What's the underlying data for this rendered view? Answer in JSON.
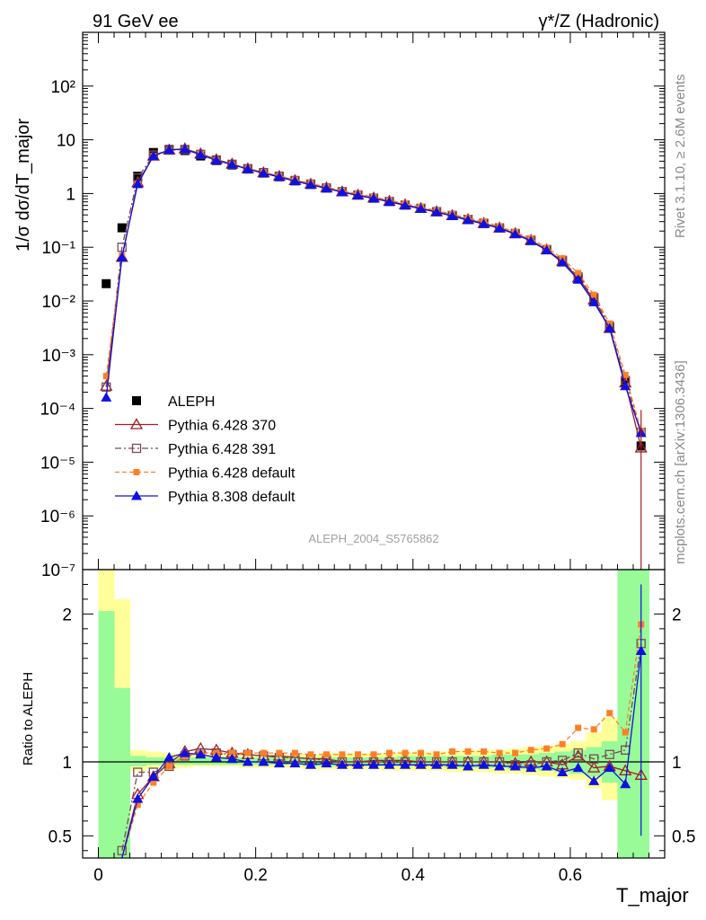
{
  "header": {
    "left": "91 GeV ee",
    "right": "γ*/Z (Hadronic)"
  },
  "side_labels": {
    "rivet": "Rivet 3.1.10, ≥ 2.6M events",
    "mcplots": "mcplots.cern.ch [arXiv:1306.3436]"
  },
  "analysis_id": "ALEPH_2004_S5765862",
  "chart_data": [
    {
      "type": "scatter",
      "panel": "main",
      "ylabel": "1/σ dσ/dT_major",
      "ylog": true,
      "ylim": [
        1e-07,
        1000
      ],
      "xlim": [
        -0.02,
        0.72
      ],
      "yticks": [
        "10⁻⁷",
        "10⁻⁶",
        "10⁻⁵",
        "10⁻⁴",
        "10⁻³",
        "10⁻²",
        "10⁻¹",
        "1",
        "10",
        "10²"
      ],
      "legend_position": "lower-left",
      "x": [
        0.01,
        0.03,
        0.05,
        0.07,
        0.09,
        0.11,
        0.13,
        0.15,
        0.17,
        0.19,
        0.21,
        0.23,
        0.25,
        0.27,
        0.29,
        0.31,
        0.33,
        0.35,
        0.37,
        0.39,
        0.41,
        0.43,
        0.45,
        0.47,
        0.49,
        0.51,
        0.53,
        0.55,
        0.57,
        0.59,
        0.61,
        0.63,
        0.65,
        0.67,
        0.69
      ],
      "series": [
        {
          "name": "ALEPH",
          "color": "#000000",
          "marker": "filled-square",
          "values": [
            0.021,
            0.23,
            2.1,
            5.8,
            6.6,
            6.3,
            5.0,
            4.1,
            3.4,
            2.85,
            2.4,
            2.05,
            1.72,
            1.48,
            1.26,
            1.08,
            0.94,
            0.82,
            0.71,
            0.61,
            0.53,
            0.46,
            0.39,
            0.33,
            0.28,
            0.23,
            0.18,
            0.135,
            0.09,
            0.056,
            0.026,
            0.011,
            0.0032,
            0.00031,
            2e-05
          ]
        },
        {
          "name": "Pythia 6.428 370",
          "color": "#a01e24",
          "marker": "open-triangle",
          "values": [
            0.00026,
            0.065,
            1.6,
            5.0,
            6.5,
            6.8,
            5.5,
            4.3,
            3.55,
            2.9,
            2.45,
            2.1,
            1.75,
            1.5,
            1.28,
            1.08,
            0.94,
            0.83,
            0.72,
            0.62,
            0.53,
            0.46,
            0.39,
            0.33,
            0.28,
            0.23,
            0.18,
            0.135,
            0.09,
            0.055,
            0.027,
            0.0105,
            0.0031,
            0.0003,
            1.85e-05
          ]
        },
        {
          "name": "Pythia 6.428 391",
          "color": "#7a4a56",
          "marker": "open-square",
          "values": [
            0.00025,
            0.1,
            1.95,
            5.2,
            6.4,
            6.6,
            5.35,
            4.2,
            3.5,
            2.9,
            2.45,
            2.1,
            1.75,
            1.5,
            1.27,
            1.08,
            0.94,
            0.82,
            0.71,
            0.61,
            0.53,
            0.46,
            0.39,
            0.33,
            0.28,
            0.23,
            0.18,
            0.135,
            0.09,
            0.057,
            0.028,
            0.0115,
            0.0034,
            0.00033,
            3.6e-05
          ]
        },
        {
          "name": "Pythia 6.428 default",
          "color": "#ff7f27",
          "marker": "filled-square-small",
          "values": [
            0.0004,
            0.07,
            1.5,
            5.0,
            6.4,
            6.6,
            5.3,
            4.2,
            3.5,
            2.95,
            2.5,
            2.15,
            1.8,
            1.55,
            1.32,
            1.12,
            0.98,
            0.86,
            0.75,
            0.65,
            0.56,
            0.48,
            0.41,
            0.35,
            0.3,
            0.245,
            0.19,
            0.145,
            0.098,
            0.062,
            0.033,
            0.013,
            0.0038,
            0.00042,
            3.85e-05
          ]
        },
        {
          "name": "Pythia 8.308 default",
          "color": "#1010e0",
          "marker": "filled-triangle",
          "values": [
            0.00016,
            0.065,
            1.5,
            5.0,
            6.5,
            6.7,
            5.25,
            4.15,
            3.45,
            2.85,
            2.38,
            2.03,
            1.7,
            1.45,
            1.25,
            1.06,
            0.92,
            0.81,
            0.7,
            0.6,
            0.52,
            0.45,
            0.38,
            0.32,
            0.27,
            0.225,
            0.175,
            0.13,
            0.088,
            0.052,
            0.025,
            0.0095,
            0.0031,
            0.00026,
            3.5e-05
          ]
        }
      ]
    },
    {
      "type": "scatter",
      "panel": "ratio",
      "xlabel": "T_major",
      "ylabel": "Ratio to ALEPH",
      "ylim": [
        0.35,
        2.3
      ],
      "xlim": [
        -0.02,
        0.72
      ],
      "yticks": [
        "0.5",
        "1",
        "2"
      ],
      "xticks": [
        "0",
        "0.2",
        "0.4",
        "0.6"
      ],
      "x": [
        0.01,
        0.03,
        0.05,
        0.07,
        0.09,
        0.11,
        0.13,
        0.15,
        0.17,
        0.19,
        0.21,
        0.23,
        0.25,
        0.27,
        0.29,
        0.31,
        0.33,
        0.35,
        0.37,
        0.39,
        0.41,
        0.43,
        0.45,
        0.47,
        0.49,
        0.51,
        0.53,
        0.55,
        0.57,
        0.59,
        0.61,
        0.63,
        0.65,
        0.67,
        0.69
      ],
      "band_data": {
        "yellow_low": [
          0.35,
          0.35,
          0.94,
          0.95,
          0.95,
          0.96,
          0.97,
          0.97,
          0.97,
          0.96,
          0.96,
          0.96,
          0.96,
          0.95,
          0.95,
          0.95,
          0.95,
          0.95,
          0.94,
          0.94,
          0.94,
          0.94,
          0.93,
          0.93,
          0.93,
          0.92,
          0.92,
          0.91,
          0.9,
          0.89,
          0.88,
          0.82,
          0.74,
          0.35,
          0.35
        ],
        "yellow_high": [
          2.3,
          2.1,
          1.08,
          1.07,
          1.06,
          1.05,
          1.05,
          1.05,
          1.05,
          1.05,
          1.05,
          1.05,
          1.05,
          1.05,
          1.06,
          1.06,
          1.06,
          1.06,
          1.06,
          1.07,
          1.07,
          1.07,
          1.07,
          1.08,
          1.08,
          1.08,
          1.09,
          1.1,
          1.11,
          1.12,
          1.14,
          1.2,
          1.3,
          2.3,
          2.3
        ],
        "green_low": [
          0.35,
          0.35,
          0.97,
          0.98,
          0.98,
          0.98,
          0.98,
          0.98,
          0.98,
          0.98,
          0.98,
          0.98,
          0.98,
          0.97,
          0.97,
          0.97,
          0.97,
          0.97,
          0.97,
          0.97,
          0.97,
          0.97,
          0.96,
          0.96,
          0.96,
          0.96,
          0.95,
          0.95,
          0.94,
          0.93,
          0.92,
          0.9,
          0.86,
          0.35,
          0.35
        ],
        "green_high": [
          2.02,
          1.5,
          1.04,
          1.03,
          1.03,
          1.03,
          1.03,
          1.03,
          1.03,
          1.03,
          1.03,
          1.03,
          1.03,
          1.03,
          1.03,
          1.03,
          1.03,
          1.03,
          1.03,
          1.04,
          1.04,
          1.04,
          1.04,
          1.04,
          1.04,
          1.05,
          1.05,
          1.05,
          1.06,
          1.07,
          1.08,
          1.1,
          1.14,
          2.3,
          2.3
        ]
      },
      "series": [
        {
          "name": "Pythia 6.428 370",
          "color": "#a01e24",
          "marker": "open-triangle",
          "values": [
            null,
            0.28,
            0.78,
            0.9,
            0.99,
            1.07,
            1.09,
            1.08,
            1.06,
            1.05,
            1.04,
            1.04,
            1.03,
            1.02,
            1.02,
            1.0,
            1.0,
            1.01,
            1.01,
            1.01,
            1.0,
            1.0,
            1.0,
            1.0,
            1.0,
            1.0,
            0.99,
            1.0,
            1.0,
            0.98,
            1.04,
            0.96,
            0.97,
            0.94,
            0.91
          ]
        },
        {
          "name": "Pythia 6.428 391",
          "color": "#7a4a56",
          "marker": "open-square",
          "values": [
            null,
            0.4,
            0.93,
            0.93,
            0.97,
            1.04,
            1.06,
            1.06,
            1.05,
            1.05,
            1.04,
            1.03,
            1.03,
            1.02,
            1.01,
            1.0,
            1.0,
            1.0,
            1.0,
            1.0,
            1.0,
            1.0,
            1.0,
            1.0,
            1.0,
            1.0,
            0.98,
            0.98,
            1.0,
            1.01,
            1.06,
            1.02,
            1.05,
            1.08,
            1.8
          ]
        },
        {
          "name": "Pythia 6.428 default",
          "color": "#ff7f27",
          "marker": "filled-square-small",
          "values": [
            null,
            0.3,
            0.71,
            0.86,
            0.97,
            1.04,
            1.06,
            1.06,
            1.06,
            1.06,
            1.06,
            1.06,
            1.06,
            1.05,
            1.05,
            1.05,
            1.05,
            1.05,
            1.06,
            1.06,
            1.06,
            1.05,
            1.07,
            1.07,
            1.07,
            1.06,
            1.06,
            1.08,
            1.09,
            1.12,
            1.23,
            1.22,
            1.33,
            1.2,
            1.93
          ]
        },
        {
          "name": "Pythia 8.308 default",
          "color": "#1010e0",
          "marker": "filled-triangle",
          "values": [
            null,
            0.28,
            0.75,
            0.9,
            1.03,
            1.06,
            1.05,
            1.03,
            1.02,
            1.0,
            1.0,
            0.99,
            0.99,
            0.98,
            0.99,
            0.98,
            0.98,
            0.98,
            0.98,
            0.98,
            0.98,
            0.98,
            0.98,
            0.97,
            0.98,
            0.97,
            0.97,
            0.96,
            0.97,
            0.93,
            0.96,
            0.87,
            0.96,
            0.85,
            1.75
          ]
        }
      ]
    }
  ]
}
